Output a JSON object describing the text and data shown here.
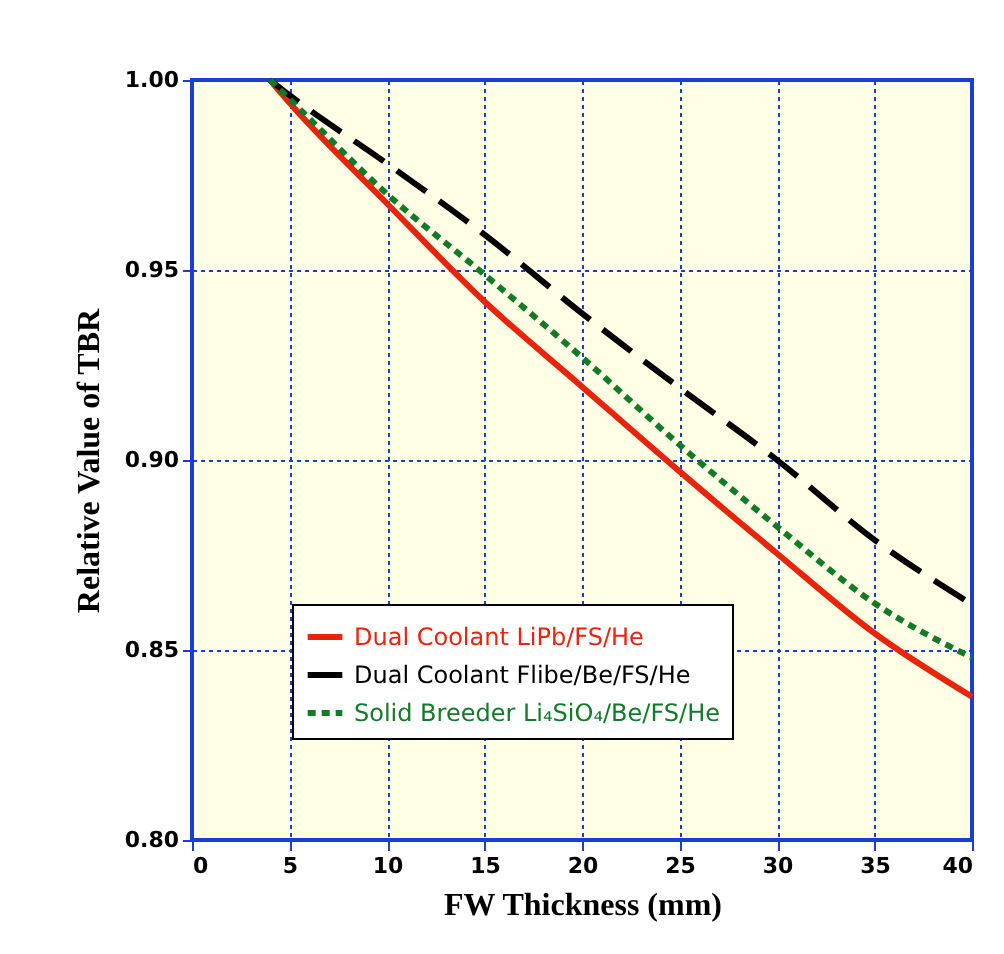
{
  "chart_data": {
    "type": "line",
    "xlabel": "FW Thickness (mm)",
    "ylabel": "Relative Value of TBR",
    "x": [
      4,
      5,
      10,
      15,
      20,
      25,
      30,
      35,
      40
    ],
    "series": [
      {
        "name": "Dual Coolant LiPb/FS/He",
        "color": "#e8250c",
        "line_style": "solid",
        "values": [
          1.0,
          0.994,
          0.9675,
          0.9417,
          0.9193,
          0.897,
          0.8754,
          0.8544,
          0.8377
        ]
      },
      {
        "name": "Dual Coolant Flibe/Be/FS/He",
        "color": "#000000",
        "line_style": "dashed",
        "values": [
          1.0,
          0.996,
          0.978,
          0.9593,
          0.9386,
          0.919,
          0.9,
          0.879,
          0.862
        ]
      },
      {
        "name": "Solid Breeder Li₄SiO₄/Be/FS/He",
        "color": "#137a2a",
        "line_style": "dotted",
        "values": [
          1.0,
          0.995,
          0.97,
          0.9488,
          0.927,
          0.904,
          0.8825,
          0.8623,
          0.848
        ]
      }
    ],
    "xlim": [
      0,
      40
    ],
    "xticks": [
      0,
      5,
      10,
      15,
      20,
      25,
      30,
      35,
      40
    ],
    "ylim": [
      0.8,
      1.0
    ],
    "yticks": [
      {
        "value": 0.8,
        "label": "0.80"
      },
      {
        "value": 0.85,
        "label": "0.85"
      },
      {
        "value": 0.9,
        "label": "0.90"
      },
      {
        "value": 0.95,
        "label": "0.95"
      },
      {
        "value": 1.0,
        "label": "1.00"
      }
    ],
    "grid": true,
    "legend": "bottom",
    "marker": "none"
  }
}
